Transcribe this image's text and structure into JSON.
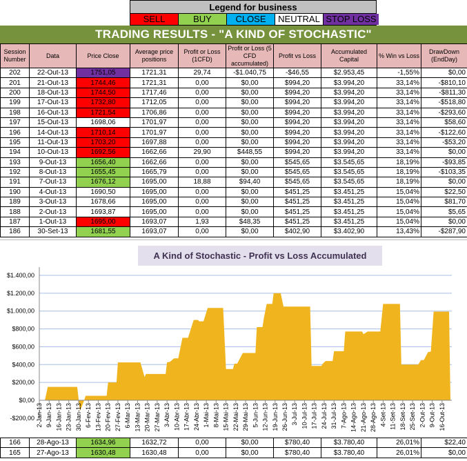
{
  "legend": {
    "title": "Legend for business",
    "items": [
      {
        "label": "SELL",
        "bg": "#ff0000",
        "fg": "#000000"
      },
      {
        "label": "BUY",
        "bg": "#92d050",
        "fg": "#000000"
      },
      {
        "label": "CLOSE",
        "bg": "#00b0f0",
        "fg": "#000000"
      },
      {
        "label": "NEUTRAL",
        "bg": "#ffffff",
        "fg": "#000000"
      },
      {
        "label": "STOP LOSS",
        "bg": "#7030a0",
        "fg": "#000000"
      }
    ]
  },
  "banner": "TRADING RESULTS - \"A KIND OF STOCHASTIC\"",
  "colors": {
    "sell": "#ff0000",
    "buy": "#92d050",
    "stop": "#7030a0",
    "neutral": "#ffffff",
    "banner": "#76923c",
    "header": "#e6b9b8",
    "area": "#f0b41e",
    "grid": "#a6bde3"
  },
  "table": {
    "headers": [
      "Session Number",
      "Data",
      "Price Close",
      "Average price positions",
      "Profit or Loss (1CFD)",
      "Profit or Loss (5 CFD accumulated)",
      "Profit vs Loss",
      "Accumulated Capital",
      "% Win vs Loss",
      "DrawDown (EndDay)"
    ],
    "rows": [
      {
        "cells": [
          "202",
          "22-Out-13",
          "1751,05",
          "1721,31",
          "29,74",
          "-$1.040,75",
          "-$46,55",
          "$2.953,45",
          "-1,55%",
          "$0,00"
        ],
        "signal": "stop"
      },
      {
        "cells": [
          "201",
          "21-Out-13",
          "1744,46",
          "1721,31",
          "0,00",
          "$0,00",
          "$994,20",
          "$3.994,20",
          "33,14%",
          "-$810,10"
        ],
        "signal": "sell"
      },
      {
        "cells": [
          "200",
          "18-Out-13",
          "1744,50",
          "1717,46",
          "0,00",
          "$0,00",
          "$994,20",
          "$3.994,20",
          "33,14%",
          "-$811,30"
        ],
        "signal": "sell"
      },
      {
        "cells": [
          "199",
          "17-Out-13",
          "1732,80",
          "1712,05",
          "0,00",
          "$0,00",
          "$994,20",
          "$3.994,20",
          "33,14%",
          "-$518,80"
        ],
        "signal": "sell"
      },
      {
        "cells": [
          "198",
          "16-Out-13",
          "1721,54",
          "1706,86",
          "0,00",
          "$0,00",
          "$994,20",
          "$3.994,20",
          "33,14%",
          "-$293,60"
        ],
        "signal": "sell"
      },
      {
        "cells": [
          "197",
          "15-Out-13",
          "1698,06",
          "1701,97",
          "0,00",
          "$0,00",
          "$994,20",
          "$3.994,20",
          "33,14%",
          "$58,60"
        ],
        "signal": "neutral"
      },
      {
        "cells": [
          "196",
          "14-Out-13",
          "1710,14",
          "1701,97",
          "0,00",
          "$0,00",
          "$994,20",
          "$3.994,20",
          "33,14%",
          "-$122,60"
        ],
        "signal": "sell"
      },
      {
        "cells": [
          "195",
          "11-Out-13",
          "1703,20",
          "1697,88",
          "0,00",
          "$0,00",
          "$994,20",
          "$3.994,20",
          "33,14%",
          "-$53,20"
        ],
        "signal": "sell"
      },
      {
        "cells": [
          "194",
          "10-Out-13",
          "1692,56",
          "1662,66",
          "29,90",
          "$448,55",
          "$994,20",
          "$3.994,20",
          "33,14%",
          "$0,00"
        ],
        "signal": "sell"
      },
      {
        "cells": [
          "193",
          "9-Out-13",
          "1656,40",
          "1662,66",
          "0,00",
          "$0,00",
          "$545,65",
          "$3.545,65",
          "18,19%",
          "-$93,85"
        ],
        "signal": "buy"
      },
      {
        "cells": [
          "192",
          "8-Out-13",
          "1655,45",
          "1665,79",
          "0,00",
          "$0,00",
          "$545,65",
          "$3.545,65",
          "18,19%",
          "-$103,35"
        ],
        "signal": "buy"
      },
      {
        "cells": [
          "191",
          "7-Out-13",
          "1676,12",
          "1695,00",
          "18,88",
          "$94,40",
          "$545,65",
          "$3.545,65",
          "18,19%",
          "$0,00"
        ],
        "signal": "buy"
      },
      {
        "cells": [
          "190",
          "4-Out-13",
          "1690,50",
          "1695,00",
          "0,00",
          "$0,00",
          "$451,25",
          "$3.451,25",
          "15,04%",
          "$22,50"
        ],
        "signal": "neutral"
      },
      {
        "cells": [
          "189",
          "3-Out-13",
          "1678,66",
          "1695,00",
          "0,00",
          "$0,00",
          "$451,25",
          "$3.451,25",
          "15,04%",
          "$81,70"
        ],
        "signal": "neutral"
      },
      {
        "cells": [
          "188",
          "2-Out-13",
          "1693,87",
          "1695,00",
          "0,00",
          "$0,00",
          "$451,25",
          "$3.451,25",
          "15,04%",
          "$5,65"
        ],
        "signal": "neutral"
      },
      {
        "cells": [
          "187",
          "1-Out-13",
          "1695,00",
          "1693,07",
          "1,93",
          "$48,35",
          "$451,25",
          "$3.451,25",
          "15,04%",
          "$0,00"
        ],
        "signal": "sell"
      },
      {
        "cells": [
          "186",
          "30-Set-13",
          "1681,55",
          "1693,07",
          "0,00",
          "$0,00",
          "$402,90",
          "$3.402,90",
          "13,43%",
          "-$287,90"
        ],
        "signal": "buy"
      }
    ],
    "bottom_rows": [
      {
        "cells": [
          "166",
          "28-Ago-13",
          "1634,96",
          "1632,72",
          "0,00",
          "$0,00",
          "$780,40",
          "$3.780,40",
          "26,01%",
          "$22,40"
        ],
        "signal": "buy"
      },
      {
        "cells": [
          "165",
          "27-Ago-13",
          "1630,48",
          "1630,48",
          "0,00",
          "$0,00",
          "$780,40",
          "$3.780,40",
          "26,01%",
          "$0,00"
        ],
        "signal": "buy"
      }
    ]
  },
  "chart_data": {
    "type": "area",
    "title": "A Kind of Stochastic - Profit vs Loss Accumulated",
    "ylim": [
      -200,
      1400
    ],
    "yticks": [
      "-$200,00",
      "$0,00",
      "$200,00",
      "$400,00",
      "$600,00",
      "$800,00",
      "$1.000,00",
      "$1.200,00",
      "$1.400,00"
    ],
    "ytick_values": [
      -200,
      0,
      200,
      400,
      600,
      800,
      1000,
      1200,
      1400
    ],
    "grid": true,
    "x_start": "2013-01-02",
    "xticks": [
      "2-Jan-13",
      "9-Jan-13",
      "16-Jan-13",
      "23-Jan-13",
      "30-Jan-13",
      "6-Fev-13",
      "13-Fev-13",
      "20-Fev-13",
      "27-Fev-13",
      "6-Mar-13",
      "13-Mar-13",
      "20-Mar-13",
      "27-Mar-13",
      "3-Abr-13",
      "10-Abr-13",
      "17-Abr-13",
      "24-Abr-13",
      "1-Mai-13",
      "8-Mai-13",
      "15-Mai-13",
      "22-Mai-13",
      "29-Mai-13",
      "5-Jun-13",
      "12-Jun-13",
      "19-Jun-13",
      "26-Jun-13",
      "3-Jul-13",
      "10-Jul-13",
      "17-Jul-13",
      "24-Jul-13",
      "31-Jul-13",
      "7-Ago-13",
      "14-Ago-13",
      "21-Ago-13",
      "28-Ago-13",
      "4-Set-13",
      "11-Set-13",
      "18-Set-13",
      "25-Set-13",
      "2-Out-13",
      "9-Out-13",
      "16-Out-13"
    ],
    "x": [
      "2013-01-06",
      "2013-01-08",
      "2013-01-29",
      "2013-01-31",
      "2013-02-03",
      "2013-02-04",
      "2013-02-19",
      "2013-02-20",
      "2013-02-26",
      "2013-02-27",
      "2013-03-15",
      "2013-03-18",
      "2013-03-19",
      "2013-04-02",
      "2013-04-03",
      "2013-04-05",
      "2013-04-08",
      "2013-04-11",
      "2013-04-14",
      "2013-04-18",
      "2013-04-22",
      "2013-04-25",
      "2013-04-26",
      "2013-04-29",
      "2013-05-02",
      "2013-05-13",
      "2013-05-15",
      "2013-05-20",
      "2013-05-21",
      "2013-05-23",
      "2013-05-27",
      "2013-06-05",
      "2013-06-06",
      "2013-06-10",
      "2013-06-11",
      "2013-06-13",
      "2013-06-17",
      "2013-06-18",
      "2013-06-23",
      "2013-06-25",
      "2013-07-14",
      "2013-07-15",
      "2013-07-22",
      "2013-07-23",
      "2013-07-25",
      "2013-07-30",
      "2013-07-31",
      "2013-08-07",
      "2013-08-08",
      "2013-08-20",
      "2013-08-21",
      "2013-08-24",
      "2013-09-02",
      "2013-09-04",
      "2013-09-16",
      "2013-09-17",
      "2013-09-29",
      "2013-10-01",
      "2013-10-03",
      "2013-10-06",
      "2013-10-08",
      "2013-10-10",
      "2013-10-21",
      "2013-10-22"
    ],
    "y": [
      0,
      150,
      150,
      -120,
      0,
      50,
      50,
      200,
      200,
      425,
      425,
      260,
      295,
      295,
      425,
      430,
      470,
      470,
      700,
      700,
      900,
      900,
      885,
      885,
      1035,
      1035,
      350,
      350,
      410,
      410,
      530,
      530,
      820,
      820,
      920,
      1080,
      1080,
      1200,
      1200,
      1050,
      1050,
      385,
      385,
      410,
      440,
      440,
      550,
      550,
      770,
      770,
      740,
      770,
      770,
      1080,
      1080,
      400,
      400,
      451,
      451,
      540,
      546,
      994,
      994,
      0
    ]
  }
}
